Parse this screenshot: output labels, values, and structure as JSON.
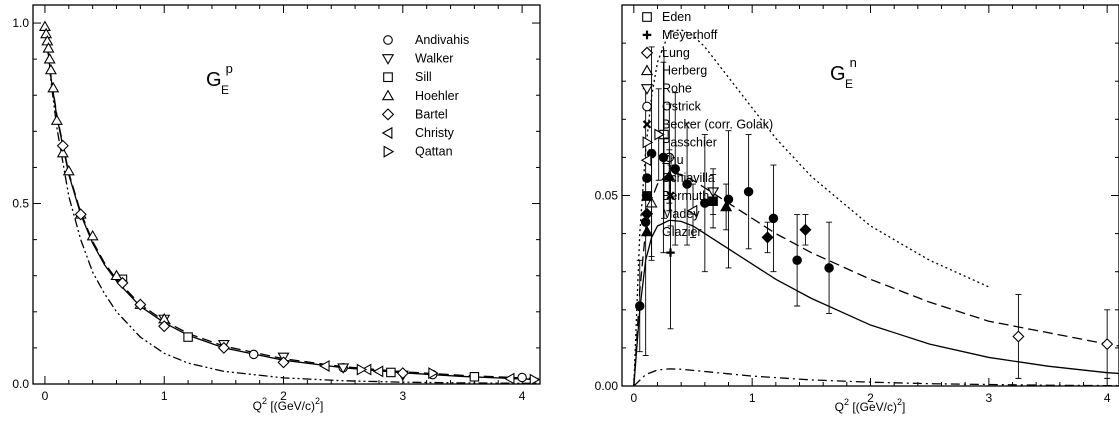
{
  "chart_data": [
    {
      "type": "scatter",
      "title": "",
      "panel_label": {
        "main": "G",
        "sub": "E",
        "sup": "p"
      },
      "xlabel": {
        "main": "Q",
        "sup": "2",
        "rest": " [(GeV/c)",
        "sup2": "2",
        "end": "]"
      },
      "ylabel": "",
      "xlim": [
        -0.1,
        4.15
      ],
      "ylim": [
        0,
        1.05
      ],
      "xticks": [
        "0",
        "1",
        "2",
        "3",
        "4"
      ],
      "xtick_values": [
        0,
        1,
        2,
        3,
        4
      ],
      "yticks": [
        "0.0",
        "0.5",
        "1.0"
      ],
      "ytick_values": [
        0,
        0.5,
        1.0
      ],
      "legend_position": "top-right",
      "series": [
        {
          "name": "Andivahis",
          "marker": "circle-open",
          "points": [
            [
              1.75,
              0.082
            ],
            [
              2.5,
              0.045
            ],
            [
              3.25,
              0.026
            ],
            [
              4.0,
              0.018
            ]
          ]
        },
        {
          "name": "Walker",
          "marker": "triangle-down-open",
          "points": [
            [
              1.0,
              0.18
            ],
            [
              1.5,
              0.11
            ],
            [
              2.0,
              0.075
            ],
            [
              2.5,
              0.045
            ],
            [
              3.0,
              0.025
            ]
          ]
        },
        {
          "name": "Sill",
          "marker": "square-open",
          "points": [
            [
              0.65,
              0.29
            ],
            [
              1.2,
              0.13
            ],
            [
              2.9,
              0.032
            ],
            [
              3.6,
              0.02
            ]
          ]
        },
        {
          "name": "Hoehler",
          "marker": "triangle-up-open",
          "points": [
            [
              0.0,
              0.99
            ],
            [
              0.01,
              0.97
            ],
            [
              0.02,
              0.95
            ],
            [
              0.03,
              0.93
            ],
            [
              0.04,
              0.9
            ],
            [
              0.05,
              0.87
            ],
            [
              0.07,
              0.82
            ],
            [
              0.1,
              0.73
            ],
            [
              0.15,
              0.64
            ],
            [
              0.2,
              0.59
            ],
            [
              0.3,
              0.47
            ],
            [
              0.4,
              0.41
            ],
            [
              0.6,
              0.3
            ],
            [
              0.8,
              0.22
            ],
            [
              1.0,
              0.18
            ]
          ]
        },
        {
          "name": "Bartel",
          "marker": "diamond-open",
          "points": [
            [
              0.15,
              0.66
            ],
            [
              0.3,
              0.47
            ],
            [
              0.65,
              0.28
            ],
            [
              0.8,
              0.22
            ],
            [
              1.0,
              0.16
            ],
            [
              1.5,
              0.1
            ],
            [
              2.0,
              0.06
            ],
            [
              3.0,
              0.03
            ]
          ]
        },
        {
          "name": "Christy",
          "marker": "triangle-left-open",
          "points": [
            [
              2.35,
              0.05
            ],
            [
              2.7,
              0.04
            ],
            [
              2.8,
              0.035
            ],
            [
              3.9,
              0.015
            ]
          ]
        },
        {
          "name": "Qattan",
          "marker": "triangle-right-open",
          "points": [
            [
              2.65,
              0.04
            ],
            [
              3.25,
              0.03
            ],
            [
              4.1,
              0.012
            ]
          ]
        }
      ],
      "curves": [
        {
          "style": "solid",
          "x": [
            0,
            0.05,
            0.1,
            0.2,
            0.3,
            0.4,
            0.5,
            0.6,
            0.8,
            1.0,
            1.2,
            1.5,
            2.0,
            2.5,
            3.0,
            3.5,
            4.0,
            4.15
          ],
          "y": [
            1.0,
            0.85,
            0.74,
            0.58,
            0.47,
            0.39,
            0.33,
            0.285,
            0.215,
            0.17,
            0.135,
            0.1,
            0.066,
            0.045,
            0.031,
            0.021,
            0.014,
            0.012
          ]
        },
        {
          "style": "dashed",
          "x": [
            0,
            0.05,
            0.1,
            0.2,
            0.3,
            0.4,
            0.5,
            0.6,
            0.8,
            1.0,
            1.2,
            1.5,
            2.0,
            2.5,
            3.0,
            3.5,
            4.0,
            4.15
          ],
          "y": [
            1.0,
            0.855,
            0.745,
            0.585,
            0.475,
            0.395,
            0.335,
            0.29,
            0.22,
            0.175,
            0.14,
            0.105,
            0.07,
            0.048,
            0.034,
            0.024,
            0.017,
            0.015
          ]
        },
        {
          "style": "dash-dot-dot",
          "x": [
            0,
            0.05,
            0.1,
            0.2,
            0.3,
            0.4,
            0.5,
            0.6,
            0.8,
            1.0,
            1.2,
            1.5,
            2.0,
            2.5,
            3.0,
            3.5,
            4.0,
            4.15
          ],
          "y": [
            1.0,
            0.84,
            0.71,
            0.52,
            0.4,
            0.31,
            0.25,
            0.2,
            0.13,
            0.085,
            0.058,
            0.035,
            0.017,
            0.009,
            0.005,
            0.003,
            0.002,
            0.002
          ]
        }
      ]
    },
    {
      "type": "scatter",
      "title": "",
      "panel_label": {
        "main": "G",
        "sub": "E",
        "sup": "n"
      },
      "xlabel": {
        "main": "Q",
        "sup": "2",
        "rest": " [(GeV/c)",
        "sup2": "2",
        "end": "]"
      },
      "ylabel": "",
      "xlim": [
        -0.1,
        4.1
      ],
      "ylim": [
        0,
        0.1
      ],
      "xticks": [
        "0",
        "1",
        "2",
        "3",
        "4"
      ],
      "xtick_values": [
        0,
        1,
        2,
        3,
        4
      ],
      "yticks": [
        "0.00",
        "0.05"
      ],
      "ytick_values": [
        0,
        0.05
      ],
      "legend_position": "top-right",
      "series": [
        {
          "name": "Eden",
          "marker": "square-open",
          "points": [
            [
              0.255,
              0.066,
              0.022
            ]
          ]
        },
        {
          "name": "Meyerhoff",
          "marker": "plus",
          "points": [
            [
              0.31,
              0.035,
              0.02
            ]
          ]
        },
        {
          "name": "Lung",
          "marker": "diamond-open",
          "points": [
            [
              3.25,
              0.013,
              0.011
            ],
            [
              4.0,
              0.011,
              0.009
            ]
          ]
        },
        {
          "name": "Herberg",
          "marker": "triangle-up-open",
          "points": [
            [
              0.15,
              0.048,
              0.014
            ]
          ]
        },
        {
          "name": "Rohe",
          "marker": "triangle-down-open",
          "points": [
            [
              0.67,
              0.051,
              0.006
            ]
          ]
        },
        {
          "name": "Ostrick",
          "marker": "circle-open",
          "points": [
            [
              0.3,
              0.06,
              0.014
            ]
          ]
        },
        {
          "name": "Becker (corr. Golak)",
          "marker": "cross",
          "points": [
            [
              0.31,
              0.05,
              0.008
            ]
          ]
        },
        {
          "name": "Passchier",
          "marker": "triangle-right-open",
          "points": [
            [
              0.21,
              0.066,
              0.012
            ]
          ]
        },
        {
          "name": "Zhu",
          "marker": "triangle-left-open",
          "points": [
            [
              0.5,
              0.046,
              0.007
            ]
          ]
        },
        {
          "name": "Schiavilla",
          "marker": "circle-filled",
          "points": [
            [
              0.05,
              0.021,
              0.012
            ],
            [
              0.1,
              0.043,
              0.035
            ],
            [
              0.15,
              0.061,
              0.028
            ],
            [
              0.25,
              0.06,
              0.025
            ],
            [
              0.35,
              0.057,
              0.02
            ],
            [
              0.45,
              0.053,
              0.016
            ],
            [
              0.6,
              0.048,
              0.018
            ],
            [
              0.8,
              0.049,
              0.018
            ],
            [
              0.97,
              0.051,
              0.015
            ],
            [
              1.18,
              0.044,
              0.014
            ],
            [
              1.38,
              0.033,
              0.012
            ],
            [
              1.65,
              0.031,
              0.012
            ]
          ]
        },
        {
          "name": "Bermuth",
          "marker": "square-filled",
          "points": [
            [
              0.67,
              0.0485,
              0.007
            ]
          ]
        },
        {
          "name": "Madey",
          "marker": "diamond-filled",
          "points": [
            [
              1.13,
              0.039,
              0.004
            ],
            [
              1.45,
              0.041,
              0.004
            ]
          ]
        },
        {
          "name": "Glazier",
          "marker": "triangle-up-filled",
          "points": [
            [
              0.3,
              0.055,
              0.007
            ],
            [
              0.78,
              0.047,
              0.006
            ]
          ]
        }
      ],
      "curves": [
        {
          "style": "dotted",
          "x": [
            0,
            0.05,
            0.1,
            0.15,
            0.2,
            0.3,
            0.4,
            0.5,
            0.6,
            0.8,
            1.0,
            1.2,
            1.5,
            2.0,
            2.5,
            3.0
          ],
          "y": [
            0,
            0.04,
            0.062,
            0.076,
            0.085,
            0.093,
            0.0935,
            0.092,
            0.089,
            0.081,
            0.073,
            0.065,
            0.055,
            0.042,
            0.033,
            0.026
          ]
        },
        {
          "style": "dashed",
          "x": [
            0,
            0.05,
            0.1,
            0.15,
            0.2,
            0.3,
            0.4,
            0.5,
            0.6,
            0.8,
            1.0,
            1.2,
            1.5,
            2.0,
            2.5,
            3.0,
            3.5,
            4.0,
            4.1
          ],
          "y": [
            0,
            0.025,
            0.041,
            0.049,
            0.053,
            0.056,
            0.0555,
            0.054,
            0.052,
            0.048,
            0.044,
            0.04,
            0.035,
            0.028,
            0.022,
            0.017,
            0.014,
            0.011,
            0.0105
          ]
        },
        {
          "style": "solid",
          "x": [
            0,
            0.05,
            0.1,
            0.15,
            0.2,
            0.3,
            0.4,
            0.5,
            0.6,
            0.8,
            1.0,
            1.2,
            1.5,
            2.0,
            2.5,
            3.0,
            3.5,
            4.0,
            4.1
          ],
          "y": [
            0,
            0.02,
            0.033,
            0.039,
            0.042,
            0.0435,
            0.0432,
            0.042,
            0.04,
            0.036,
            0.032,
            0.028,
            0.023,
            0.016,
            0.011,
            0.0075,
            0.0052,
            0.0035,
            0.0033
          ]
        },
        {
          "style": "dash-dot",
          "x": [
            0,
            0.1,
            0.2,
            0.3,
            0.4,
            0.6,
            0.8,
            1.0,
            1.5,
            2.0,
            2.5,
            3.0,
            3.5,
            4.0,
            4.1
          ],
          "y": [
            0,
            0.003,
            0.0042,
            0.0045,
            0.0044,
            0.0038,
            0.0032,
            0.0026,
            0.0016,
            0.001,
            0.0006,
            0.0004,
            0.0002,
            0.0001,
            0.0001
          ]
        }
      ]
    }
  ]
}
